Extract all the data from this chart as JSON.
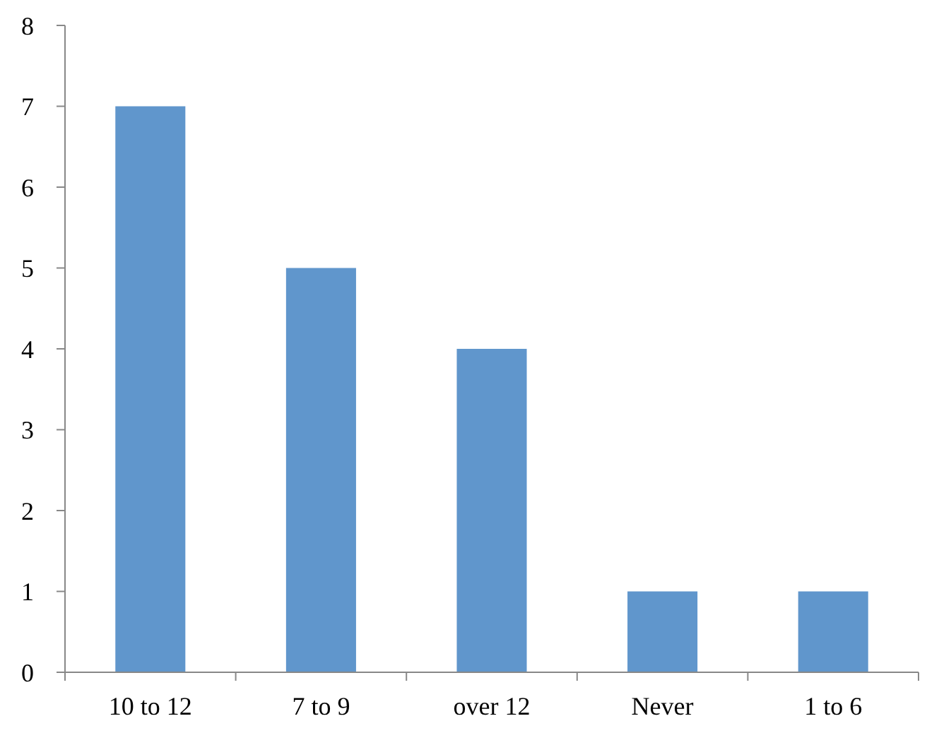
{
  "chart_data": {
    "type": "bar",
    "categories": [
      "10 to 12",
      "7 to 9",
      "over 12",
      "Never",
      "1 to 6"
    ],
    "values": [
      7,
      5,
      4,
      1,
      1
    ],
    "color": "#6096cc",
    "ylim": [
      0,
      8
    ],
    "yticks": [
      0,
      1,
      2,
      3,
      4,
      5,
      6,
      7,
      8
    ],
    "grid": false
  }
}
